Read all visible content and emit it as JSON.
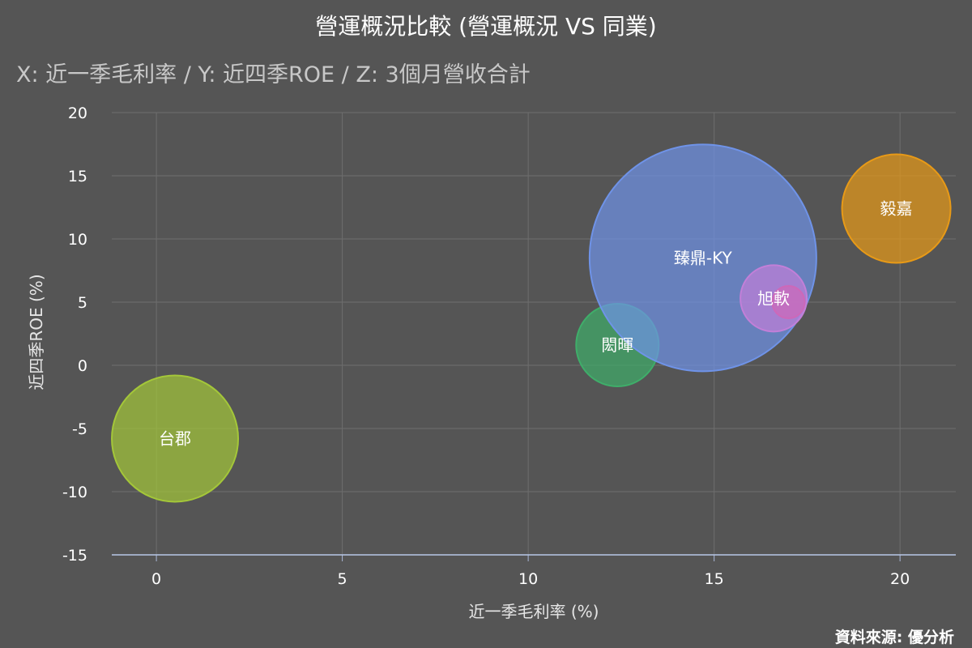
{
  "chart_data": {
    "type": "scatter",
    "title": "營運概況比較 (營運概況 VS 同業)",
    "subtitle": "X: 近一季毛利率 / Y: 近四季ROE / Z: 3個月營收合計",
    "xlabel": "近一季毛利率 (%)",
    "ylabel": "近四季ROE (%)",
    "xlim": [
      -1.2,
      21.5
    ],
    "ylim": [
      -15,
      20
    ],
    "x_ticks": [
      "0",
      "5",
      "10",
      "15",
      "20"
    ],
    "y_ticks": [
      "20",
      "15",
      "10",
      "5",
      "0",
      "-5",
      "-10",
      "-15"
    ],
    "grid": true,
    "source": "資料來源: 優分析",
    "series": [
      {
        "name": "台郡",
        "x": 0.5,
        "y": -5.8,
        "z": 78,
        "color": "#a4c739"
      },
      {
        "name": "閎暉",
        "x": 12.4,
        "y": 1.6,
        "z": 51,
        "color": "#3fae6a"
      },
      {
        "name": "臻鼎-KY",
        "x": 14.7,
        "y": 8.5,
        "z": 140,
        "color": "#6f93e8"
      },
      {
        "name": "",
        "x": 17.0,
        "y": 5.0,
        "z": 20,
        "color": "#e8346e"
      },
      {
        "name": "旭軟",
        "x": 16.6,
        "y": 5.3,
        "z": 41,
        "color": "#c27fd8"
      },
      {
        "name": "毅嘉",
        "x": 19.9,
        "y": 12.4,
        "z": 67,
        "color": "#e89a17"
      }
    ]
  }
}
